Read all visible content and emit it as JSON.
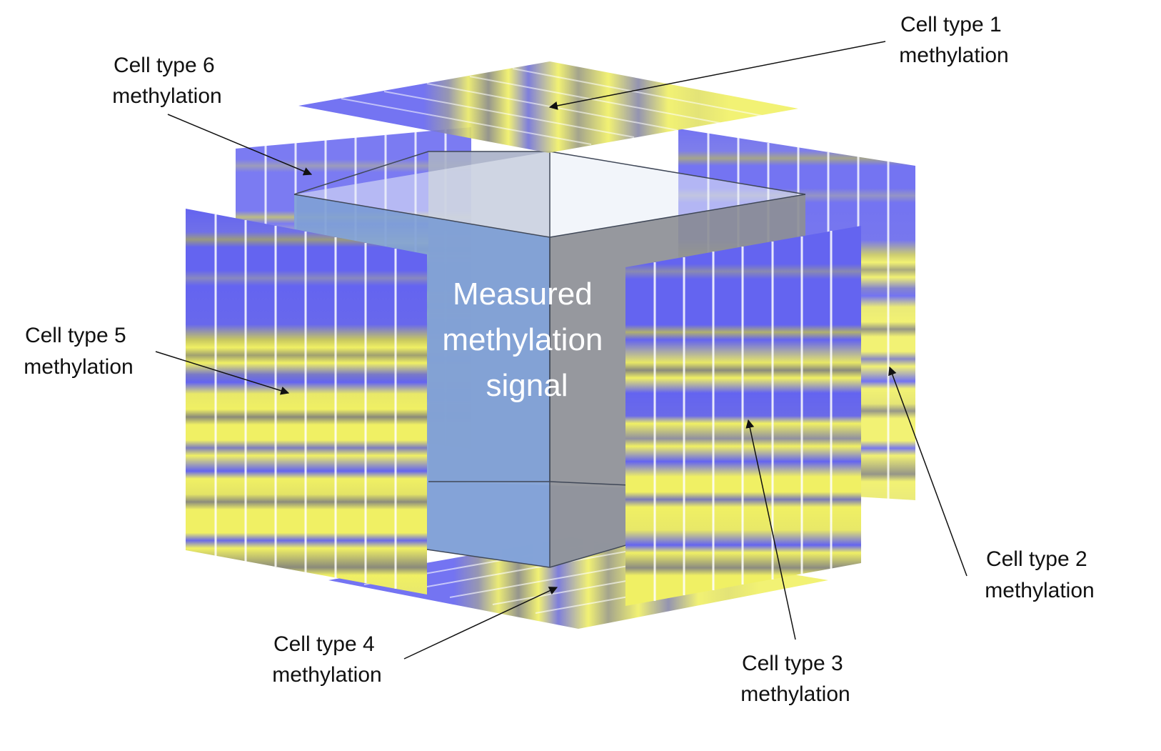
{
  "center_label": [
    "Measured",
    "methylation",
    "signal"
  ],
  "panels": [
    {
      "id": "ct1",
      "label": [
        "Cell type 1",
        "methylation"
      ],
      "yellow_bands": [
        0.04,
        0.1,
        0.16,
        0.22,
        0.27,
        0.31,
        0.36,
        0.41,
        0.47,
        0.52,
        0.58,
        0.64,
        0.7,
        0.76,
        0.82,
        0.88,
        0.94
      ],
      "band_strength": [
        0.5,
        0.6,
        0.9,
        0.7,
        0.95,
        0.8,
        0.9,
        0.6,
        0.85,
        0.7,
        0.9,
        0.6,
        0.8,
        0.7,
        0.9,
        0.6,
        0.8
      ]
    },
    {
      "id": "ct2",
      "label": [
        "Cell type 2",
        "methylation"
      ]
    },
    {
      "id": "ct3",
      "label": [
        "Cell type 3",
        "methylation"
      ]
    },
    {
      "id": "ct4",
      "label": [
        "Cell type 4",
        "methylation"
      ]
    },
    {
      "id": "ct5",
      "label": [
        "Cell type 5",
        "methylation"
      ]
    },
    {
      "id": "ct6",
      "label": [
        "Cell type 6",
        "methylation"
      ]
    }
  ],
  "colors": {
    "unmethylated": "#6464f0",
    "methylated": "#f0f064",
    "mid": "#9898a8",
    "cube_left": "#7f9fd6",
    "cube_right": "#8d8f96",
    "cube_back": "#a8b0c8",
    "cube_floor": "#b4c8f0",
    "arrow": "#111111"
  }
}
